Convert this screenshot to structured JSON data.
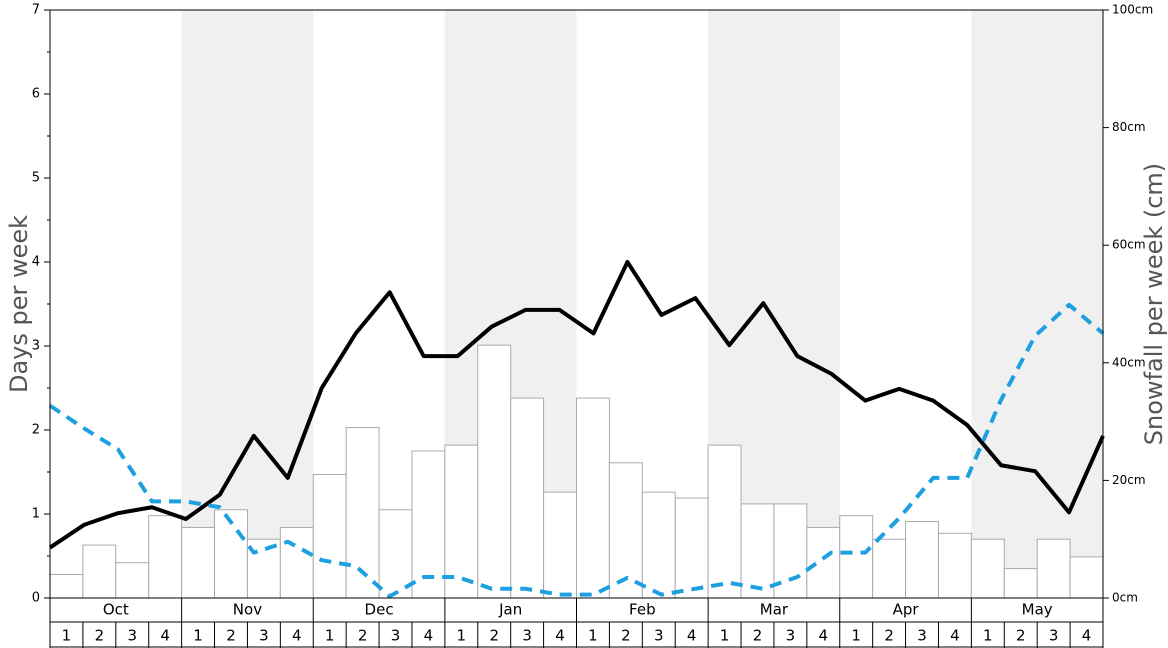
{
  "chart_data": {
    "type": "bar-line",
    "months": [
      "Oct",
      "Nov",
      "Dec",
      "Jan",
      "Feb",
      "Mar",
      "Apr",
      "May"
    ],
    "categories": [
      "1",
      "2",
      "3",
      "4",
      "1",
      "2",
      "3",
      "4",
      "1",
      "2",
      "3",
      "4",
      "1",
      "2",
      "3",
      "4",
      "1",
      "2",
      "3",
      "4",
      "1",
      "2",
      "3",
      "4",
      "1",
      "2",
      "3",
      "4",
      "1",
      "2",
      "3",
      "4"
    ],
    "ylabel": "Days per week",
    "y2label": "Snowfall per week (cm)",
    "ylim": [
      0,
      7
    ],
    "yticks": [
      0,
      1,
      2,
      3,
      4,
      5,
      6,
      7
    ],
    "y2lim": [
      0,
      100
    ],
    "y2ticks": [
      {
        "value": 0,
        "label": "0cm"
      },
      {
        "value": 20,
        "label": "20cm"
      },
      {
        "value": 40,
        "label": "40cm"
      },
      {
        "value": 60,
        "label": "60cm"
      },
      {
        "value": 80,
        "label": "80cm"
      },
      {
        "value": 100,
        "label": "100cm"
      }
    ],
    "band_color": "#f0f0f0",
    "series": [
      {
        "kind": "bar",
        "axis": "y2",
        "color": "#ffffff",
        "values": [
          4,
          9,
          6,
          14,
          12,
          15,
          10,
          12,
          21,
          29,
          15,
          25,
          26,
          43,
          34,
          18,
          34,
          23,
          18,
          17,
          26,
          16,
          16,
          12,
          14,
          10,
          13,
          11,
          10,
          5,
          10,
          7
        ]
      },
      {
        "kind": "line",
        "color": "#000000",
        "values": [
          0.6,
          0.87,
          1.01,
          1.08,
          0.94,
          1.23,
          1.93,
          1.43,
          2.5,
          3.15,
          3.64,
          2.88,
          2.88,
          3.23,
          3.43,
          3.43,
          3.15,
          4.0,
          3.37,
          3.57,
          3.01,
          3.51,
          2.88,
          2.67,
          2.35,
          2.49,
          2.35,
          2.06,
          1.58,
          1.51,
          1.02,
          1.93
        ]
      },
      {
        "kind": "dashed",
        "color": "#1ea0e0",
        "values": [
          2.29,
          2.02,
          1.77,
          1.15,
          1.15,
          1.08,
          0.54,
          0.67,
          0.45,
          0.38,
          0.02,
          0.25,
          0.25,
          0.11,
          0.11,
          0.04,
          0.04,
          0.24,
          0.04,
          0.11,
          0.18,
          0.11,
          0.25,
          0.54,
          0.54,
          0.95,
          1.43,
          1.43,
          2.36,
          3.12,
          3.49,
          3.15
        ]
      }
    ]
  }
}
